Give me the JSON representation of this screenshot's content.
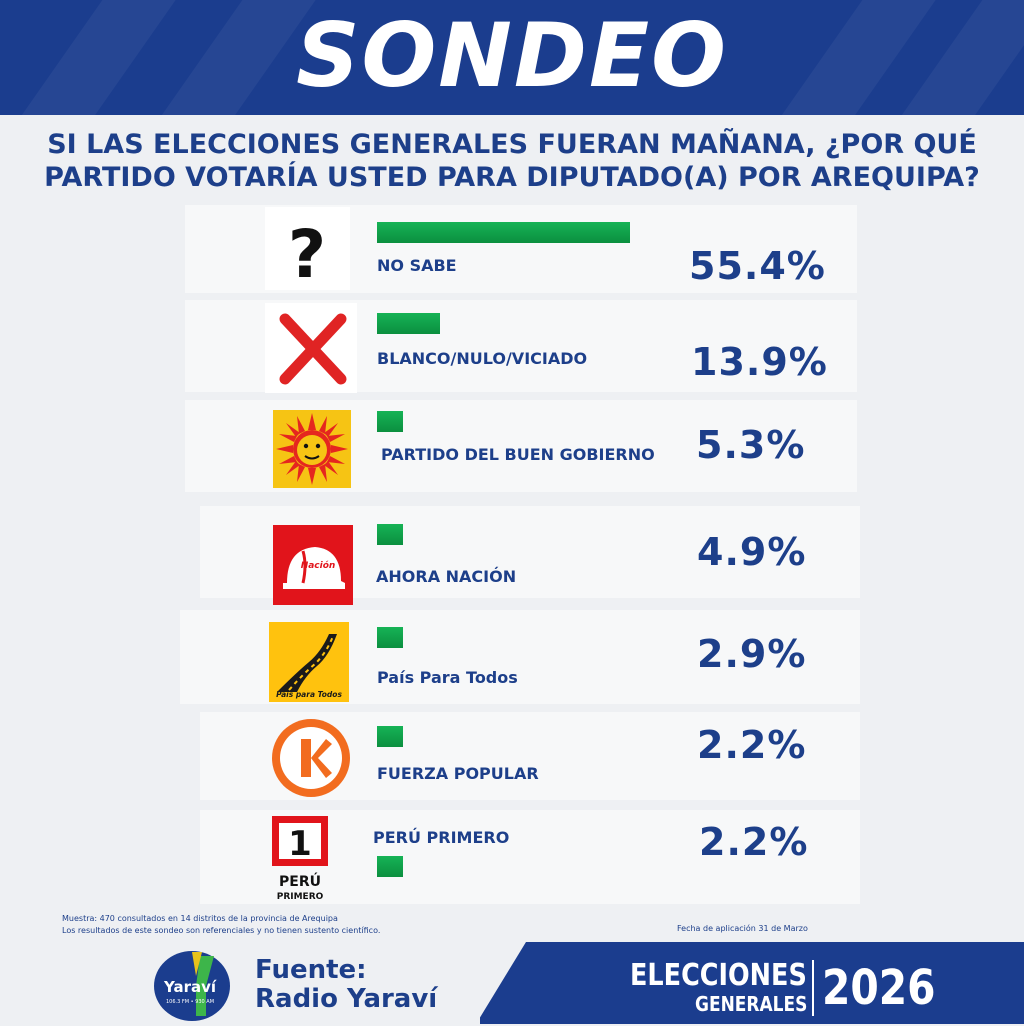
{
  "header": {
    "title": "SONDEO"
  },
  "question": {
    "line1": "SI LAS ELECCIONES GENERALES FUERAN MAÑANA, ¿POR QUÉ",
    "line2": "PARTIDO VOTARÍA USTED PARA DIPUTADO(A) POR AREQUIPA?"
  },
  "colors": {
    "navy": "#1b3d8e",
    "bar_green": "#13a34c",
    "cross_red": "#e02424",
    "sun_yellow": "#f6c414",
    "sun_red": "#e5261f",
    "nacion_red": "#e1141b",
    "pais_yellow": "#ffc20e",
    "fuerza_orange": "#f26c1f"
  },
  "chart_data": {
    "type": "bar",
    "title": "",
    "xlabel": "",
    "ylabel": "",
    "categories": [
      "NO SABE",
      "BLANCO/NULO/VICIADO",
      "PARTIDO DEL BUEN GOBIERNO",
      "AHORA NACIÓN",
      "País Para Todos",
      "FUERZA POPULAR",
      "PERÚ PRIMERO"
    ],
    "values": [
      55.4,
      13.9,
      5.3,
      4.9,
      2.9,
      2.2,
      2.2
    ],
    "value_labels": [
      "55.4%",
      "13.9%",
      "5.3%",
      "4.9%",
      "2.9%",
      "2.2%",
      "2.2%"
    ],
    "icons": [
      "question-mark-icon",
      "red-cross-icon",
      "sun-face-logo",
      "white-helmet-logo",
      "road-logo",
      "k-circle-logo",
      "peru-primero-logo"
    ],
    "logo_text": {
      "ahora_nacion": "Nación",
      "pais_para_todos": "País para Todos",
      "peru_primero_num": "1",
      "peru_primero_1": "PERÚ",
      "peru_primero_2": "PRIMERO"
    }
  },
  "footnote": {
    "line1": "Muestra: 470 consultados en 14 distritos de la provincia de Arequipa",
    "line2": "Los resultados de este sondeo son referenciales y no tienen sustento científico.",
    "date": "Fecha de aplicación 31 de Marzo"
  },
  "footer": {
    "source_title": "Fuente:",
    "source_name": "Radio Yaraví",
    "logo_name": "Yaraví",
    "logo_freq": "106.3 FM • 930 AM",
    "elections_1": "ELECCIONES",
    "elections_2": "GENERALES",
    "year": "2026"
  }
}
